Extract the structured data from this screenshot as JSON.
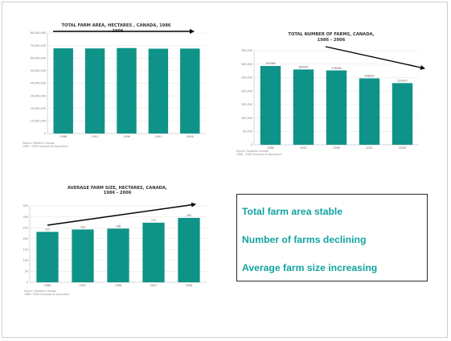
{
  "slide": {
    "summary": [
      "Total farm area stable",
      "Number of farms declining",
      "Average farm size increasing"
    ]
  },
  "colors": {
    "bar": "#0f9388",
    "text_accent": "#12a4a0",
    "trend_arrow": "#000000"
  },
  "chart_data": [
    {
      "type": "bar",
      "title": "TOTAL FARM AREA, HECTARES , CANADA, 1986 - 2006",
      "title_lines": [
        "TOTAL FARM AREA, HECTARES , CANADA, 1986",
        "- 2006"
      ],
      "categories": [
        "1986",
        "1991",
        "1996",
        "2001",
        "2006"
      ],
      "values": [
        67800000,
        67700000,
        68000000,
        67500000,
        67600000
      ],
      "ylim": [
        0,
        80000000
      ],
      "yticks": [
        0,
        10000000,
        20000000,
        30000000,
        40000000,
        50000000,
        60000000,
        70000000,
        80000000
      ],
      "ytick_labels": [
        "0",
        "10,000,000",
        "20,000,000",
        "30,000,000",
        "40,000,000",
        "50,000,000",
        "60,000,000",
        "70,000,000",
        "80,000,000"
      ],
      "data_labels": [],
      "source": [
        "Source: Statistics Canada",
        "1986 - 2006 Censuses of Agriculture"
      ],
      "trend_arrow": "flat",
      "grid": true
    },
    {
      "type": "bar",
      "title": "TOTAL NUMBER OF FARMS, CANADA, 1986 - 2006",
      "title_lines": [
        "TOTAL NUMBER OF FARMS, CANADA,",
        "1986 - 2006"
      ],
      "categories": [
        "1986",
        "1991",
        "1996",
        "2001",
        "2006"
      ],
      "values": [
        293089,
        280043,
        276548,
        246923,
        229373
      ],
      "ylim": [
        0,
        350000
      ],
      "yticks": [
        0,
        50000,
        100000,
        150000,
        200000,
        250000,
        300000,
        350000
      ],
      "ytick_labels": [
        "0",
        "50,000",
        "100,000",
        "150,000",
        "200,000",
        "250,000",
        "300,000",
        "350,000"
      ],
      "data_labels": [
        "293089",
        "280043",
        "276548",
        "246923",
        "229373"
      ],
      "source": [
        "Source: Statistics Canada",
        "1986 - 2006 Censuses of Agriculture"
      ],
      "trend_arrow": "down",
      "grid": true
    },
    {
      "type": "bar",
      "title": "AVERAGE FARM SIZE, HECTARES, CANADA, 1986 - 2006",
      "title_lines": [
        "AVERAGE FARM SIZE, HECTARES, CANADA,",
        "1986 - 2006"
      ],
      "categories": [
        "1986",
        "1991",
        "1996",
        "2001",
        "2006"
      ],
      "values": [
        231,
        242,
        246,
        273,
        295
      ],
      "ylim": [
        0,
        350
      ],
      "yticks": [
        0,
        50,
        100,
        150,
        200,
        250,
        300,
        350
      ],
      "ytick_labels": [
        "0",
        "50",
        "100",
        "150",
        "200",
        "250",
        "300",
        "350"
      ],
      "data_labels": [
        "231",
        "242",
        "246",
        "273",
        "295"
      ],
      "source": [
        "Source: Statistics Canada",
        "1986 - 2006 Censuses of Agriculture"
      ],
      "trend_arrow": "up",
      "grid": true
    }
  ]
}
